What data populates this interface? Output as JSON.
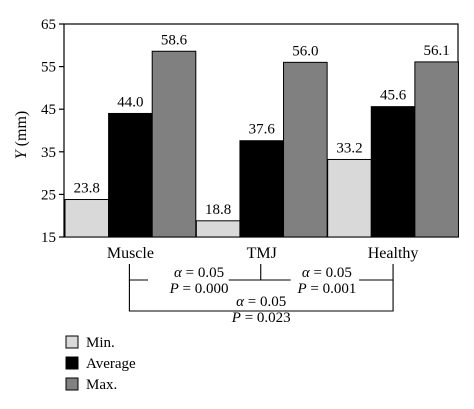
{
  "chart_data": {
    "type": "bar",
    "categories": [
      "Muscle",
      "TMJ",
      "Healthy"
    ],
    "series": [
      {
        "name": "Min.",
        "values": [
          23.8,
          18.8,
          33.2
        ]
      },
      {
        "name": "Average",
        "values": [
          44.0,
          37.6,
          45.6
        ]
      },
      {
        "name": "Max.",
        "values": [
          58.6,
          56.0,
          56.1
        ]
      }
    ],
    "data_labels": [
      [
        "23.8",
        "44.0",
        "58.6"
      ],
      [
        "18.8",
        "37.6",
        "56.0"
      ],
      [
        "33.2",
        "45.6",
        "56.1"
      ]
    ],
    "ylabel_var": "Y",
    "ylabel_unit": " (mm)",
    "xlabel": "",
    "ylim": [
      15,
      65
    ],
    "yticks": [
      15,
      25,
      35,
      45,
      55,
      65
    ],
    "grid": false,
    "legend_position": "bottom-left",
    "colors": {
      "Min.": "#d9d9d9",
      "Average": "#000000",
      "Max.": "#808080"
    },
    "comparisons": [
      {
        "pair": [
          "Muscle",
          "TMJ"
        ],
        "alpha_symbol": "α",
        "alpha_value": " = 0.05",
        "p_symbol": "P",
        "p_value": " = 0.000"
      },
      {
        "pair": [
          "TMJ",
          "Healthy"
        ],
        "alpha_symbol": "α",
        "alpha_value": " = 0.05",
        "p_symbol": "P",
        "p_value": " = 0.001"
      },
      {
        "pair": [
          "Muscle",
          "Healthy"
        ],
        "alpha_symbol": "α",
        "alpha_value": " = 0.05",
        "p_symbol": "P",
        "p_value": " = 0.023"
      }
    ]
  }
}
